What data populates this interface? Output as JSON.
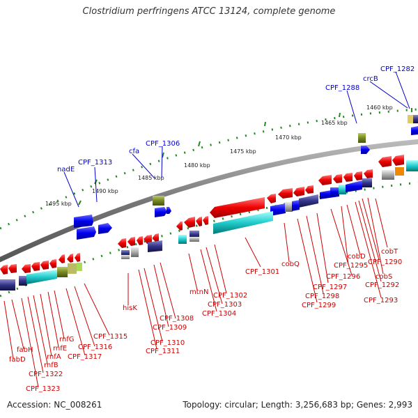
{
  "title": "Clostridium perfringens ATCC 13124, complete genome",
  "footer": {
    "accession": "Accession: NC_008261",
    "summary": "Topology: circular; Length: 3,256,683 bp; Genes: 2,993"
  },
  "scale_ticks": [
    "1460 kbp",
    "1465 kbp",
    "1470 kbp",
    "1475 kbp",
    "1480 kbp",
    "1485 kbp",
    "1490 kbp",
    "1495 kbp"
  ],
  "genes_outer": [
    "CPF_1282",
    "crcB",
    "CPF_1288",
    "CPF_1306",
    "cfa",
    "CPF_1313",
    "nadE"
  ],
  "genes_inner": [
    "cobT",
    "cobS",
    "CPF_1290",
    "CPF_1292",
    "CPF_1293",
    "cobD",
    "CPF_1295",
    "CPF_1296",
    "CPF_1297",
    "CPF_1298",
    "CPF_1299",
    "cobQ",
    "CPF_1301",
    "CPF_1302",
    "CPF_1303",
    "CPF_1304",
    "mtnN",
    "CPF_1308",
    "CPF_1309",
    "CPF_1310",
    "CPF_1311",
    "hisK",
    "CPF_1315",
    "CPF_1316",
    "CPF_1317",
    "rnfG",
    "rnfE",
    "rnfA",
    "rnfB",
    "CPF_1322",
    "CPF_1323",
    "fabH",
    "fabD"
  ],
  "colors": {
    "outer_label": "#0000cc",
    "inner_label": "#cc0000",
    "backbone": "#888888",
    "tick": "#228822",
    "forward_gene": "#0000ee",
    "reverse_gene": "#ee0000"
  }
}
